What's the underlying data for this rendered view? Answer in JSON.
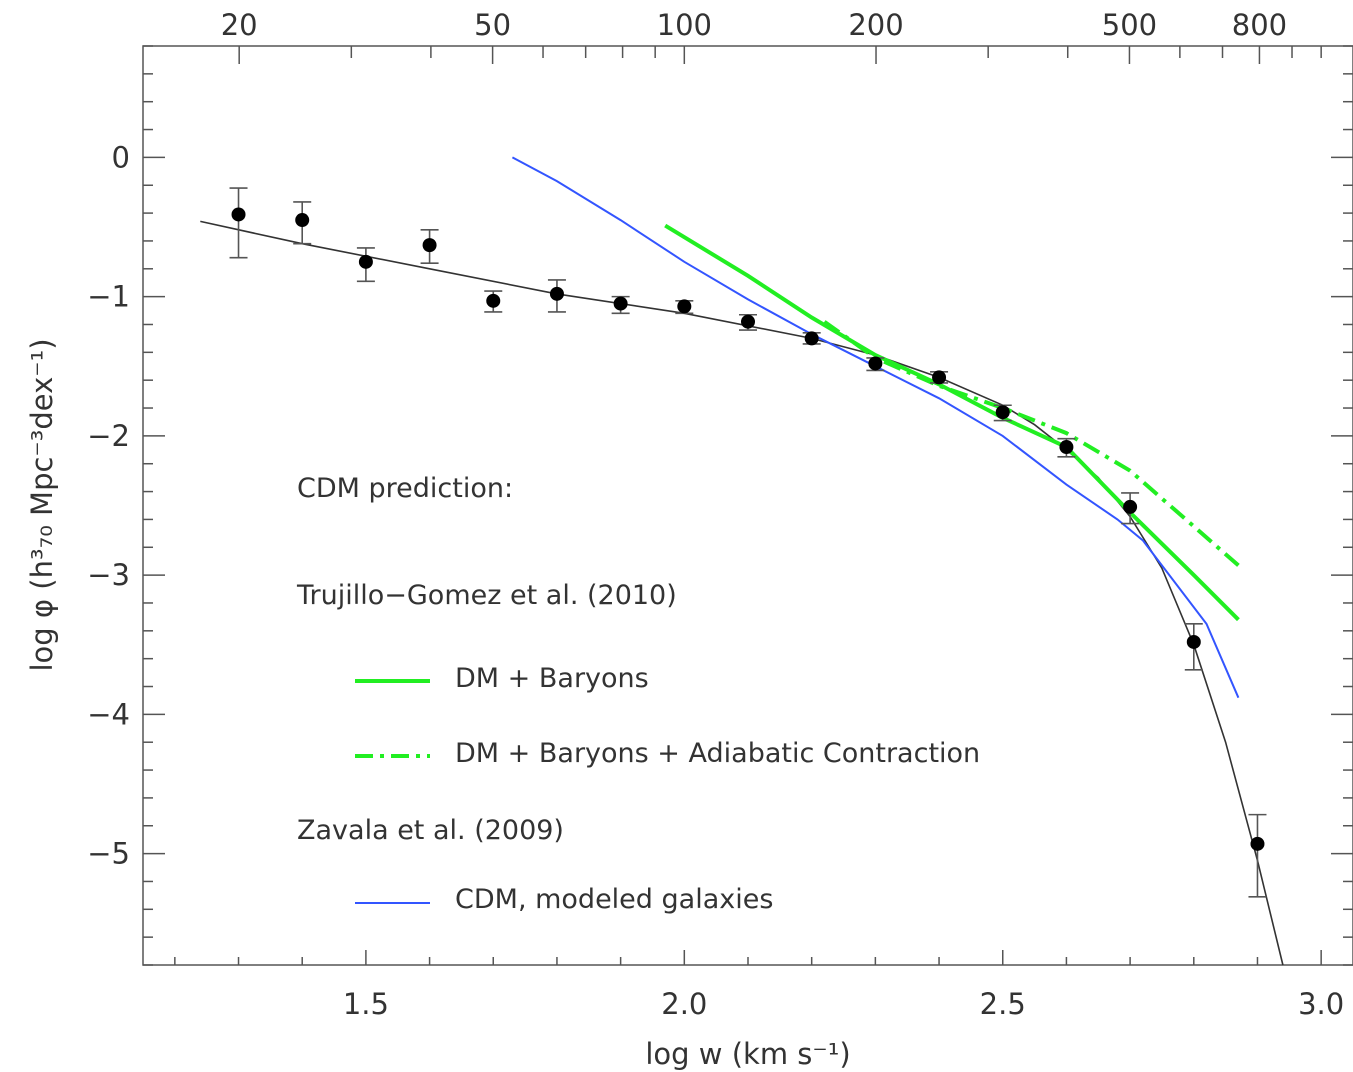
{
  "chart_data": {
    "type": "scatter",
    "xlabel": "log w (km s⁻¹)",
    "ylabel": "log φ (h³₇₀ Mpc⁻³dex⁻¹)",
    "xlim": [
      1.15,
      3.05
    ],
    "ylim": [
      -5.8,
      0.8
    ],
    "x_ticks": [
      1.5,
      2.0,
      2.5,
      3.0
    ],
    "x_tick_labels": [
      "1.5",
      "2.0",
      "2.5",
      "3.0"
    ],
    "y_ticks": [
      0,
      -1,
      -2,
      -3,
      -4,
      -5
    ],
    "y_tick_labels": [
      "0",
      "−1",
      "−2",
      "−3",
      "−4",
      "−5"
    ],
    "top_axis": {
      "ticks": [
        20,
        50,
        100,
        200,
        500,
        800
      ],
      "tick_labels": [
        "20",
        "50",
        "100",
        "200",
        "500",
        "800"
      ],
      "scale": "log"
    },
    "grid": false,
    "legend_position": "lower-left",
    "legend": {
      "heading": "CDM prediction:",
      "group1_title": "Trujillo−Gomez et al. (2010)",
      "group2_title": "Zavala et al. (2009)",
      "entries": [
        "DM + Baryons",
        "DM + Baryons + Adiabatic Contraction",
        "CDM, modeled galaxies"
      ]
    },
    "colors": {
      "data": "#000000",
      "fit": "#333333",
      "dm_baryons": "#22ee22",
      "adiabatic": "#22ee22",
      "zavala": "#3355ff",
      "axes": "#555555"
    },
    "series": [
      {
        "kind": "points_with_errorbars",
        "x": [
          1.3,
          1.4,
          1.5,
          1.6,
          1.7,
          1.8,
          1.9,
          2.0,
          2.1,
          2.2,
          2.3,
          2.4,
          2.5,
          2.6,
          2.7,
          2.8,
          2.9
        ],
        "y": [
          -0.41,
          -0.45,
          -0.75,
          -0.63,
          -1.03,
          -0.98,
          -1.05,
          -1.07,
          -1.18,
          -1.3,
          -1.48,
          -1.58,
          -1.83,
          -2.08,
          -2.51,
          -3.48,
          -4.93
        ],
        "y_err_low": [
          0.31,
          0.17,
          0.14,
          0.13,
          0.08,
          0.13,
          0.07,
          0.05,
          0.06,
          0.04,
          0.05,
          0.04,
          0.06,
          0.07,
          0.12,
          0.2,
          0.38
        ],
        "y_err_high": [
          0.19,
          0.13,
          0.1,
          0.11,
          0.07,
          0.1,
          0.05,
          0.04,
          0.05,
          0.04,
          0.04,
          0.04,
          0.05,
          0.06,
          0.1,
          0.13,
          0.21
        ]
      },
      {
        "kind": "fit_line",
        "x": [
          1.24,
          1.4,
          1.6,
          1.8,
          2.0,
          2.2,
          2.3,
          2.4,
          2.5,
          2.55,
          2.6,
          2.65,
          2.7,
          2.75,
          2.8,
          2.85,
          2.9,
          2.94
        ],
        "y": [
          -0.46,
          -0.62,
          -0.8,
          -0.98,
          -1.12,
          -1.3,
          -1.42,
          -1.58,
          -1.78,
          -1.92,
          -2.1,
          -2.3,
          -2.58,
          -2.95,
          -3.5,
          -4.2,
          -5.05,
          -5.8
        ]
      },
      {
        "name": "DM + Baryons",
        "x": [
          1.97,
          2.1,
          2.2,
          2.3,
          2.4,
          2.5,
          2.6,
          2.7,
          2.8,
          2.87
        ],
        "y": [
          -0.49,
          -0.85,
          -1.15,
          -1.42,
          -1.63,
          -1.87,
          -2.08,
          -2.55,
          -3.0,
          -3.32
        ]
      },
      {
        "name": "DM + Baryons + Adiabatic Contraction",
        "x": [
          2.22,
          2.3,
          2.4,
          2.5,
          2.6,
          2.7,
          2.8,
          2.87
        ],
        "y": [
          -1.18,
          -1.44,
          -1.64,
          -1.8,
          -1.98,
          -2.25,
          -2.65,
          -2.93
        ]
      },
      {
        "name": "CDM, modeled galaxies",
        "x": [
          1.73,
          1.8,
          1.9,
          2.0,
          2.1,
          2.2,
          2.3,
          2.4,
          2.5,
          2.6,
          2.68,
          2.72,
          2.82,
          2.87
        ],
        "y": [
          0.0,
          -0.17,
          -0.45,
          -0.75,
          -1.02,
          -1.27,
          -1.5,
          -1.73,
          -2.0,
          -2.35,
          -2.6,
          -2.75,
          -3.35,
          -3.88
        ]
      }
    ]
  }
}
